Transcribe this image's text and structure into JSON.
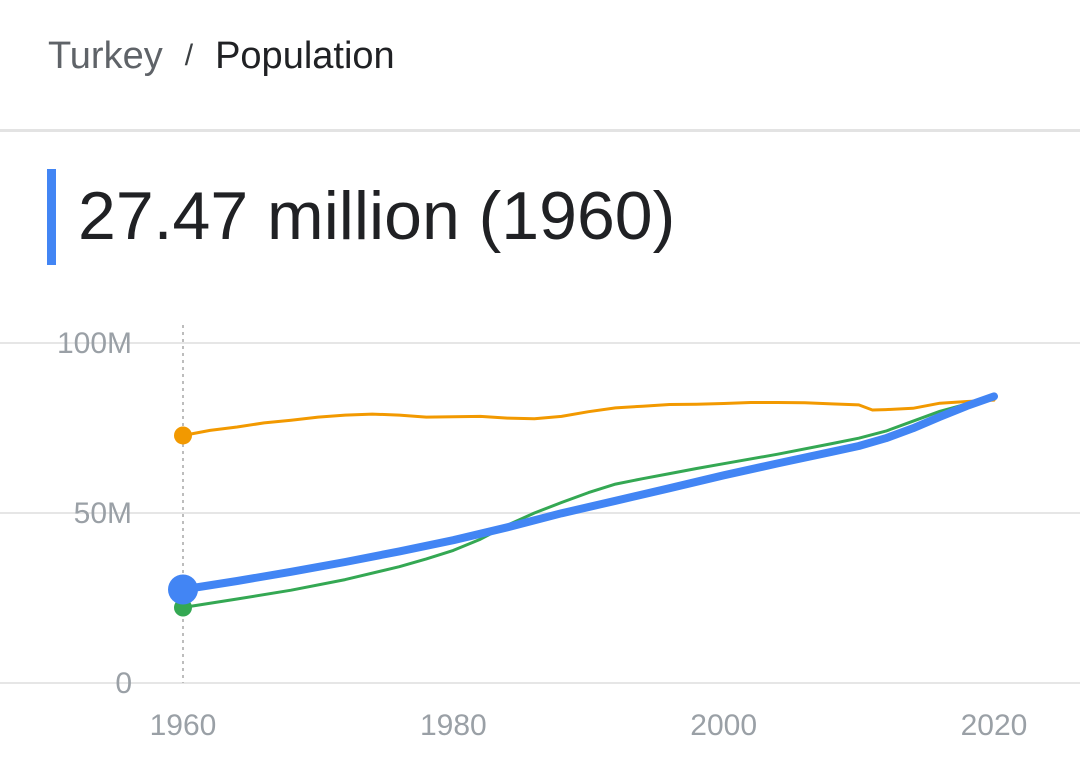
{
  "breadcrumb": {
    "country": "Turkey",
    "separator": "/",
    "topic": "Population"
  },
  "headline": {
    "value_text": "27.47 million (1960)",
    "accent_color": "#4285f4"
  },
  "chart_data": {
    "type": "line",
    "xlim": [
      1950,
      2026
    ],
    "ylim": [
      0,
      100
    ],
    "y_unit": "M",
    "x_ticks": [
      1960,
      1980,
      2000,
      2020
    ],
    "y_ticks": [
      {
        "value": 0,
        "label": "0"
      },
      {
        "value": 50,
        "label": "50M"
      },
      {
        "value": 100,
        "label": "100M"
      }
    ],
    "grid": true,
    "selected_x": 1960,
    "series": [
      {
        "color": "#f29900",
        "highlighted": false,
        "points": [
          [
            1960,
            72.8
          ],
          [
            1962,
            74.3
          ],
          [
            1964,
            75.3
          ],
          [
            1966,
            76.5
          ],
          [
            1968,
            77.3
          ],
          [
            1970,
            78.2
          ],
          [
            1972,
            78.8
          ],
          [
            1974,
            79.1
          ],
          [
            1976,
            78.8
          ],
          [
            1978,
            78.2
          ],
          [
            1980,
            78.3
          ],
          [
            1982,
            78.4
          ],
          [
            1984,
            77.9
          ],
          [
            1986,
            77.7
          ],
          [
            1988,
            78.4
          ],
          [
            1990,
            79.8
          ],
          [
            1992,
            80.9
          ],
          [
            1994,
            81.4
          ],
          [
            1996,
            81.9
          ],
          [
            1998,
            82.0
          ],
          [
            2000,
            82.2
          ],
          [
            2002,
            82.5
          ],
          [
            2004,
            82.5
          ],
          [
            2006,
            82.4
          ],
          [
            2008,
            82.1
          ],
          [
            2010,
            81.8
          ],
          [
            2011,
            80.3
          ],
          [
            2012,
            80.4
          ],
          [
            2014,
            80.8
          ],
          [
            2016,
            82.3
          ],
          [
            2018,
            82.8
          ],
          [
            2020,
            83.2
          ]
        ]
      },
      {
        "color": "#34a853",
        "highlighted": false,
        "points": [
          [
            1960,
            22.2
          ],
          [
            1964,
            24.7
          ],
          [
            1968,
            27.3
          ],
          [
            1972,
            30.4
          ],
          [
            1976,
            34.2
          ],
          [
            1978,
            36.5
          ],
          [
            1980,
            39.0
          ],
          [
            1982,
            42.3
          ],
          [
            1984,
            46.4
          ],
          [
            1986,
            50.0
          ],
          [
            1988,
            53.1
          ],
          [
            1990,
            56.0
          ],
          [
            1992,
            58.5
          ],
          [
            1994,
            60.1
          ],
          [
            1996,
            61.6
          ],
          [
            1998,
            63.1
          ],
          [
            2000,
            64.5
          ],
          [
            2004,
            67.3
          ],
          [
            2008,
            70.4
          ],
          [
            2010,
            72.0
          ],
          [
            2012,
            74.1
          ],
          [
            2014,
            77.0
          ],
          [
            2016,
            79.9
          ],
          [
            2018,
            82.1
          ],
          [
            2020,
            84.0
          ]
        ]
      },
      {
        "color": "#4285f4",
        "highlighted": true,
        "points": [
          [
            1960,
            27.5
          ],
          [
            1964,
            30.0
          ],
          [
            1968,
            32.7
          ],
          [
            1972,
            35.6
          ],
          [
            1976,
            38.7
          ],
          [
            1980,
            42.0
          ],
          [
            1984,
            45.8
          ],
          [
            1988,
            49.9
          ],
          [
            1992,
            53.6
          ],
          [
            1996,
            57.3
          ],
          [
            2000,
            61.1
          ],
          [
            2004,
            64.6
          ],
          [
            2008,
            68.0
          ],
          [
            2010,
            69.7
          ],
          [
            2012,
            72.0
          ],
          [
            2014,
            74.9
          ],
          [
            2016,
            78.3
          ],
          [
            2018,
            81.5
          ],
          [
            2020,
            84.3
          ]
        ]
      }
    ]
  }
}
